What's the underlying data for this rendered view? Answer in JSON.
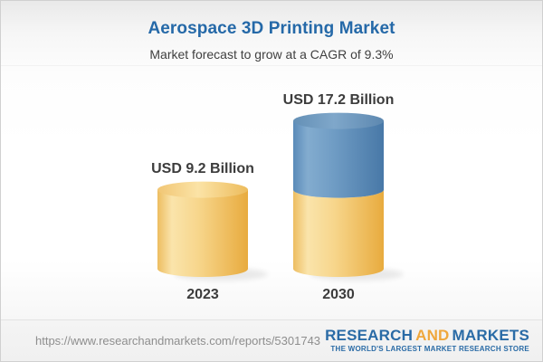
{
  "header": {
    "title": "Aerospace 3D Printing Market",
    "subtitle": "Market forecast to grow at a CAGR of 9.3%"
  },
  "chart_data": {
    "type": "bar",
    "style": "3d-cylinder",
    "categories": [
      "2023",
      "2030"
    ],
    "values": [
      9.2,
      17.2
    ],
    "value_labels": [
      "USD 9.2 Billion",
      "USD 17.2 Billion"
    ],
    "unit": "USD Billion",
    "cagr_percent": 9.3,
    "stacked_2030_segments": {
      "base_2023_value": 9.2,
      "growth_value": 8.0
    },
    "legend_position": "none",
    "grid": false,
    "colors": {
      "yellow_body_light": "#fae4ab",
      "yellow_body_mid": "#f7d68c",
      "yellow_body_dark": "#e8ab3e",
      "yellow_top": "#f8db96",
      "blue_body_light": "#83accf",
      "blue_body_mid": "#6f9cc4",
      "blue_body_dark": "#4878a7",
      "blue_top": "#6f9abc",
      "label_text": "#3c3c3c",
      "title_blue": "#2569a8"
    }
  },
  "footer": {
    "url": "https://www.researchandmarkets.com/reports/5301743",
    "logo": {
      "word1": "RESEARCH",
      "word2": "AND",
      "word3": "MARKETS",
      "tagline": "THE WORLD'S LARGEST MARKET RESEARCH STORE",
      "blue": "#2a6ba6",
      "orange": "#efa73c"
    }
  }
}
